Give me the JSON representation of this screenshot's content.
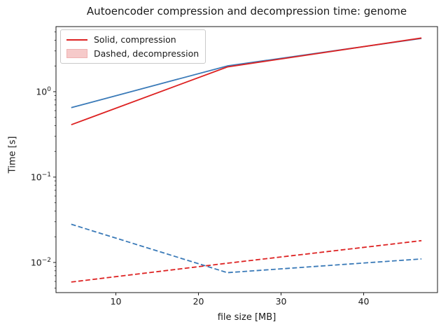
{
  "title": "Autoencoder compression and decompression time: genome",
  "legend": {
    "items": [
      {
        "label": "Solid, compression",
        "swatch": "red-solid-line"
      },
      {
        "label": "Dashed, decompression",
        "swatch": "light-red-patch"
      }
    ]
  },
  "colors": {
    "red_line": "#dd2222",
    "blue_line": "#3a7ab8",
    "legend_patch_fill": "#f6caca",
    "legend_patch_edge": "#efb2b2",
    "axis": "#1a1a1a"
  },
  "chart_data": {
    "type": "line",
    "title": "Autoencoder compression and decompression time: genome",
    "xlabel": "file size [MB]",
    "ylabel": "Time [s]",
    "yscale": "log",
    "grid": false,
    "legend_position": "upper-left",
    "x": [
      4.6,
      23.5,
      47
    ],
    "series": [
      {
        "name": "blue-compression",
        "style": "solid",
        "color": "#3a7ab8",
        "values": [
          0.65,
          2.0,
          4.2
        ]
      },
      {
        "name": "red-compression",
        "style": "solid",
        "color": "#dd2222",
        "values": [
          0.41,
          1.95,
          4.25
        ]
      },
      {
        "name": "blue-decompression",
        "style": "dashed",
        "color": "#3a7ab8",
        "values": [
          0.028,
          0.0076,
          0.011
        ]
      },
      {
        "name": "red-decompression",
        "style": "dashed",
        "color": "#dd2222",
        "values": [
          0.0059,
          0.0098,
          0.018
        ]
      }
    ],
    "xticks": [
      10,
      20,
      30,
      40
    ],
    "ytick_exponents": [
      0,
      -1,
      -2
    ],
    "xlim": [
      2.75,
      48.94
    ],
    "ylim": [
      0.00444,
      5.78
    ]
  }
}
